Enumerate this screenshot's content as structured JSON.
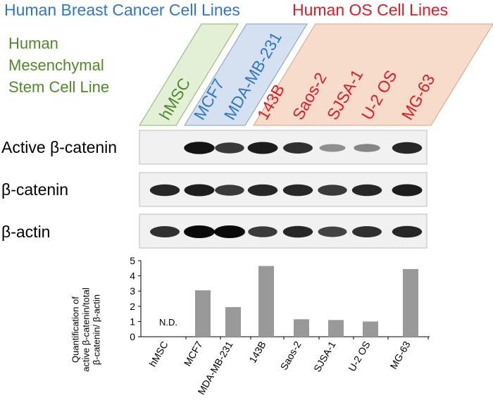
{
  "headers": {
    "breast": "Human Breast Cancer Cell Lines",
    "os": "Human OS Cell Lines"
  },
  "msc_label": [
    "Human",
    "Mesenchymal",
    "Stem Cell Line"
  ],
  "lane_labels": [
    {
      "text": "hMSC",
      "color": "#4f8a2a"
    },
    {
      "text": "MCF7",
      "color": "#2f76c9"
    },
    {
      "text": "MDA-MB-231",
      "color": "#2f76c9"
    },
    {
      "text": "143B",
      "color": "#e01b24"
    },
    {
      "text": "Saos-2",
      "color": "#e01b24"
    },
    {
      "text": "SJSA-1",
      "color": "#e01b24"
    },
    {
      "text": "U-2 OS",
      "color": "#e01b24"
    },
    {
      "text": "MG-63",
      "color": "#e01b24"
    }
  ],
  "group_colors": {
    "msc": "#e4f0d6",
    "breast": "#d5e1f1",
    "os": "#f8dccb"
  },
  "blots": [
    {
      "label": "Active β-catenin",
      "intensities": [
        0,
        0.95,
        0.75,
        0.9,
        0.8,
        0.3,
        0.35,
        0.85
      ]
    },
    {
      "label": "β-catenin",
      "intensities": [
        0.85,
        0.9,
        0.75,
        0.85,
        0.85,
        0.75,
        0.85,
        0.9
      ]
    },
    {
      "label": "β-actin",
      "intensities": [
        0.8,
        1.0,
        1.0,
        0.75,
        0.85,
        0.7,
        0.8,
        0.85
      ]
    }
  ],
  "chart_data": {
    "type": "bar",
    "categories": [
      "hMSC",
      "MCF7",
      "MDA-MB-231",
      "143B",
      "Saos-2",
      "SJSA-1",
      "U-2 OS",
      "MG-63"
    ],
    "values": [
      null,
      3.05,
      1.95,
      4.65,
      1.15,
      1.1,
      1.0,
      4.45
    ],
    "ylabel": [
      "Quantification of",
      "active β-catenin/total",
      "β-catenin/ β-actin"
    ],
    "ylim": [
      0,
      5
    ],
    "yticks": [
      "0",
      "1",
      "2",
      "3",
      "4",
      "5"
    ],
    "annotation": "N.D.",
    "bar_color": "#999999",
    "grid": false
  }
}
